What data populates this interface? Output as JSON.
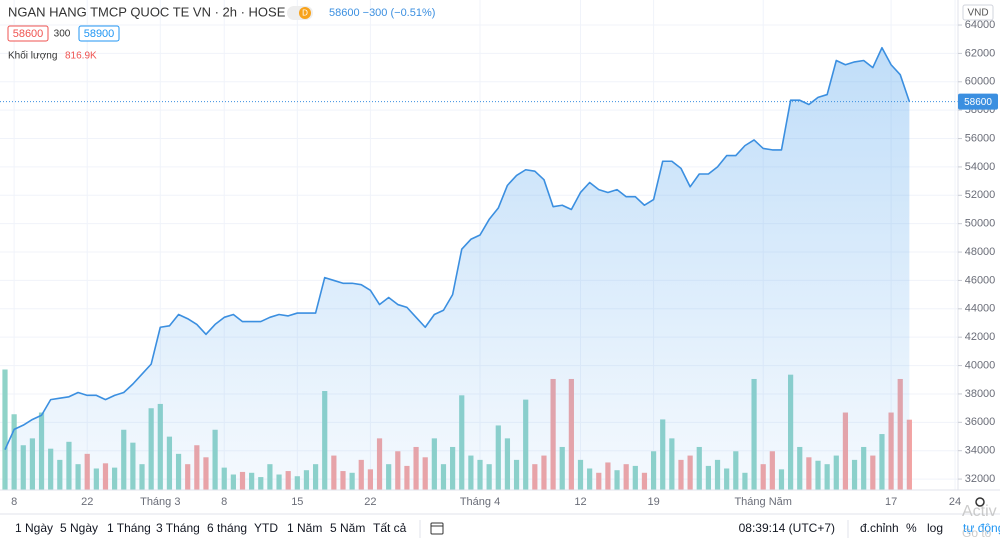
{
  "header": {
    "title": "NGAN HANG TMCP QUOC TE VN · 2h · HOSE",
    "badge": "D",
    "quote": "58600 −300 (−0.51%)",
    "bid": "58600",
    "spread": "300",
    "ask": "58900",
    "volume_label": "Khối lượng",
    "volume_value": "816.9K",
    "currency": "VND"
  },
  "toolbar": {
    "ranges": [
      "1 Ngày",
      "5 Ngày",
      "1 Tháng",
      "3 Tháng",
      "6 tháng",
      "YTD",
      "1 Năm",
      "5 Năm",
      "Tất cả"
    ],
    "time": "08:39:14 (UTC+7)",
    "adjust": "đ.chỉnh",
    "percent": "%",
    "log": "log",
    "auto": "tự động"
  },
  "watermark": [
    "Activ",
    "Go to"
  ],
  "chart_data": {
    "type": "area",
    "line_color": "#3b8fe0",
    "up_color": "#8fd3c8",
    "down_color": "#f2a3a3",
    "grid": true,
    "categories": [
      null,
      "8",
      null,
      null,
      null,
      null,
      null,
      null,
      null,
      "22",
      null,
      null,
      null,
      null,
      null,
      null,
      null,
      "Tháng 3",
      null,
      null,
      null,
      null,
      null,
      null,
      "8",
      null,
      null,
      null,
      null,
      null,
      null,
      null,
      "15",
      null,
      null,
      null,
      null,
      null,
      null,
      null,
      "22",
      null,
      null,
      null,
      null,
      null,
      null,
      null,
      null,
      null,
      null,
      null,
      "Tháng 4",
      null,
      null,
      null,
      null,
      null,
      null,
      null,
      null,
      null,
      null,
      "12",
      null,
      null,
      null,
      null,
      null,
      null,
      null,
      "19",
      null,
      null,
      null,
      null,
      null,
      null,
      null,
      null,
      null,
      null,
      null,
      "Tháng Năm",
      null,
      null,
      null,
      null,
      null,
      null,
      null,
      null,
      null,
      null,
      null,
      null,
      null,
      "17",
      null,
      null,
      null,
      null,
      null,
      null,
      "24",
      null
    ],
    "values": [
      34070,
      35500,
      35800,
      36200,
      36500,
      37600,
      37700,
      37800,
      38100,
      37900,
      37900,
      37600,
      37900,
      38100,
      38700,
      39400,
      40100,
      42700,
      42800,
      43600,
      43300,
      42900,
      42200,
      42900,
      43400,
      43600,
      43100,
      43100,
      43100,
      43400,
      43600,
      43500,
      43700,
      43700,
      43700,
      46200,
      46000,
      45800,
      45800,
      45700,
      45300,
      44300,
      44800,
      44300,
      44100,
      43400,
      42700,
      43600,
      43900,
      45000,
      48200,
      48900,
      49200,
      50300,
      51100,
      52700,
      53400,
      53800,
      53700,
      53100,
      51200,
      51300,
      51000,
      52200,
      52900,
      52400,
      52200,
      52400,
      51900,
      51900,
      51300,
      51700,
      54400,
      54400,
      53900,
      52600,
      53500,
      53500,
      54000,
      54800,
      54800,
      55500,
      55900,
      55300,
      55200,
      55200,
      58700,
      58700,
      58400,
      58900,
      59100,
      61500,
      61200,
      61400,
      61500,
      61000,
      62400,
      61200,
      60500,
      58600,
      null,
      null,
      null,
      null,
      null,
      null
    ],
    "volume": [
      1400000,
      880000,
      520000,
      600000,
      900000,
      480000,
      350000,
      560000,
      300000,
      420000,
      250000,
      310000,
      260000,
      700000,
      550000,
      300000,
      950000,
      1000000,
      620000,
      420000,
      300000,
      520000,
      380000,
      700000,
      260000,
      180000,
      210000,
      200000,
      150000,
      300000,
      180000,
      220000,
      160000,
      230000,
      300000,
      1150000,
      400000,
      220000,
      200000,
      350000,
      240000,
      600000,
      300000,
      450000,
      280000,
      500000,
      380000,
      600000,
      300000,
      500000,
      1100000,
      400000,
      350000,
      300000,
      750000,
      600000,
      350000,
      1050000,
      300000,
      400000,
      1290000,
      500000,
      1290000,
      350000,
      250000,
      200000,
      320000,
      230000,
      300000,
      280000,
      200000,
      450000,
      820000,
      600000,
      350000,
      400000,
      500000,
      280000,
      350000,
      250000,
      450000,
      200000,
      1290000,
      300000,
      450000,
      240000,
      1340000,
      500000,
      380000,
      340000,
      300000,
      400000,
      900000,
      350000,
      500000,
      400000,
      650000,
      900000,
      1290000,
      816900,
      null,
      null,
      null,
      null,
      null,
      null
    ],
    "ylim": [
      31230,
      65200
    ],
    "yticks": [
      32000,
      34000,
      36000,
      38000,
      40000,
      42000,
      44000,
      46000,
      48000,
      50000,
      52000,
      54000,
      56000,
      58000,
      60000,
      62000,
      64000
    ],
    "volume_ylim": [
      0,
      5600000
    ],
    "last_price": 58600
  }
}
